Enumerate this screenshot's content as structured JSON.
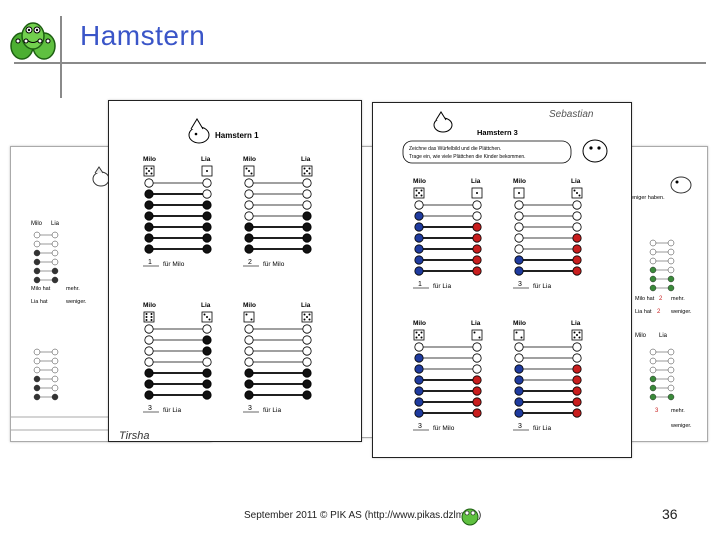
{
  "slide": {
    "title": "Hamstern",
    "footer": "September 2011 © PIK AS (http://www.pikas.dzlm.de)",
    "page_number": "36"
  },
  "worksheet_left": {
    "title": "Hamstern 1",
    "panels": [
      {
        "left_name": "Milo",
        "right_name": "Lia",
        "answer_value": "1",
        "answer_label": "für Milo"
      },
      {
        "left_name": "Milo",
        "right_name": "Lia",
        "answer_value": "2",
        "answer_label": "für Milo"
      },
      {
        "left_name": "Milo",
        "right_name": "Lia",
        "answer_value": "3",
        "answer_label": "für Lia"
      },
      {
        "left_name": "Milo",
        "right_name": "Lia",
        "answer_value": "3",
        "answer_label": "für Lia"
      }
    ]
  },
  "worksheet_right": {
    "title": "Hamstern 3",
    "instruction_line1": "Zeichne das Würfelbild und die Plättchen.",
    "instruction_line2": "Trage ein, wie viele Plättchen die Kinder bekommen.",
    "panels": [
      {
        "left_name": "Milo",
        "right_name": "Lia",
        "answer_value": "1",
        "answer_label": "für Lia"
      },
      {
        "left_name": "Milo",
        "right_name": "Lia",
        "answer_value": "3",
        "answer_label": "für Lia"
      },
      {
        "left_name": "Milo",
        "right_name": "Lia",
        "answer_value": "3",
        "answer_label": "für Milo"
      },
      {
        "left_name": "Milo",
        "right_name": "Lia",
        "answer_value": "3",
        "answer_label": "für Lia"
      }
    ]
  },
  "background_sheets": {
    "left_labels": [
      "Milo",
      "Lia",
      "Milo hat",
      "mehr.",
      "Lia hat",
      "weniger."
    ],
    "right_labels": [
      "weniger haben.",
      "Milo hat",
      "2",
      "mehr.",
      "Lia hat",
      "2",
      "weniger.",
      "Milo",
      "Lia",
      "3",
      "mehr.",
      "weniger."
    ]
  },
  "colors": {
    "title": "#3a55c8",
    "blue_counter": "#1f3b9e",
    "red_counter": "#c81e1e",
    "green_counter": "#3a8a3a"
  }
}
